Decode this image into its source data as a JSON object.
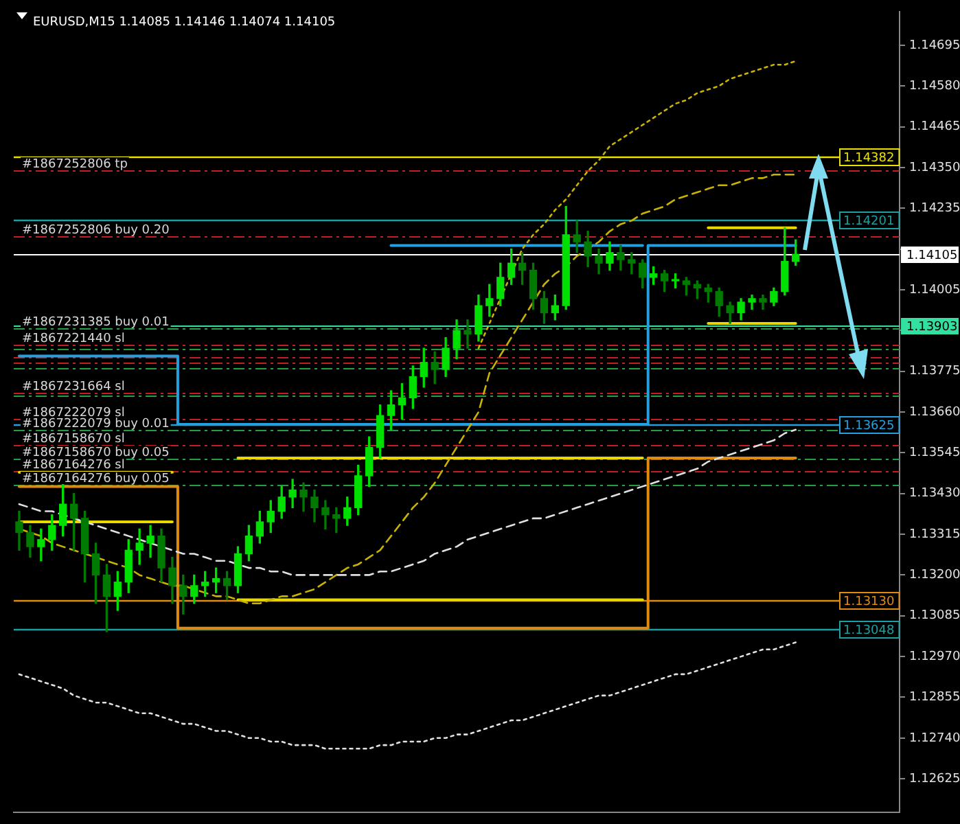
{
  "chart_data": {
    "type": "candlestick",
    "title": "EURUSD,M15 1.14085 1.14146 1.14074 1.14105",
    "colors": [
      "#007a00",
      "#007a00",
      "#00e000",
      "#00e000",
      "#00e000",
      "#007a00",
      "#007a00",
      "#007a00",
      "#007a00",
      "#00e000",
      "#00e000",
      "#00e000",
      "#00e000",
      "#007a00",
      "#007a00",
      "#007a00",
      "#00e000",
      "#00e000",
      "#00e000",
      "#007a00",
      "#00e000",
      "#00e000",
      "#00e000",
      "#00e000",
      "#00e000",
      "#00e000",
      "#007a00",
      "#007a00",
      "#007a00",
      "#007a00",
      "#00e000",
      "#00e000",
      "#00e000",
      "#00e000",
      "#00e000",
      "#00e000",
      "#00e000",
      "#00e000",
      "#007a00",
      "#00e000",
      "#00e000",
      "#007a00",
      "#00e000",
      "#00e000",
      "#00e000",
      "#00e000",
      "#007a00",
      "#007a00",
      "#007a00",
      "#00e000",
      "#00e000",
      "#007a00",
      "#007a00",
      "#007a00",
      "#00e000",
      "#007a00",
      "#007a00",
      "#007a00",
      "#00e000",
      "#007a00",
      "#00e000",
      "#007a00",
      "#007a00",
      "#007a00",
      "#007a00",
      "#007a00",
      "#00e000",
      "#00e000",
      "#007a00",
      "#00e000",
      "#00e000",
      "#00e000",
      null,
      null,
      null,
      null,
      null,
      null,
      null,
      null,
      null
    ],
    "categories": [
      null,
      null,
      null,
      null,
      null,
      null,
      null,
      null,
      null,
      null,
      null,
      null,
      null,
      null,
      null,
      null,
      null,
      null,
      null,
      null,
      null,
      null,
      null,
      null,
      null,
      null,
      null,
      null,
      null,
      null,
      null,
      null,
      null,
      null,
      null,
      null,
      null,
      null,
      null,
      null,
      null,
      null,
      null,
      null,
      null,
      null,
      null,
      null,
      null,
      null,
      null,
      null,
      null,
      null,
      null,
      null,
      null,
      null,
      null,
      null,
      null,
      null,
      null,
      null,
      null,
      null,
      null,
      null,
      null,
      null,
      null,
      null,
      null,
      null,
      null,
      null,
      null,
      null,
      null,
      null,
      null
    ],
    "ohlc": [
      [
        1.1335,
        1.1338,
        1.1327,
        1.1332
      ],
      [
        1.1332,
        1.1334,
        1.1325,
        1.1328
      ],
      [
        1.1328,
        1.1333,
        1.1324,
        1.133
      ],
      [
        1.133,
        1.1337,
        1.1327,
        1.1334
      ],
      [
        1.1334,
        1.1346,
        1.1331,
        1.134
      ],
      [
        1.134,
        1.1343,
        1.1327,
        1.1336
      ],
      [
        1.1336,
        1.1338,
        1.1318,
        1.1326
      ],
      [
        1.1326,
        1.1329,
        1.1312,
        1.132
      ],
      [
        1.132,
        1.1323,
        1.1304,
        1.1314
      ],
      [
        1.1314,
        1.1321,
        1.131,
        1.1318
      ],
      [
        1.1318,
        1.133,
        1.1315,
        1.1327
      ],
      [
        1.1327,
        1.1333,
        1.1323,
        1.1329
      ],
      [
        1.1329,
        1.1334,
        1.1325,
        1.1331
      ],
      [
        1.1331,
        1.1333,
        1.1318,
        1.1322
      ],
      [
        1.1322,
        1.1325,
        1.1312,
        1.1317
      ],
      [
        1.1317,
        1.132,
        1.1309,
        1.1314
      ],
      [
        1.1314,
        1.132,
        1.1312,
        1.1317
      ],
      [
        1.1317,
        1.1321,
        1.1314,
        1.1318
      ],
      [
        1.1318,
        1.1322,
        1.1315,
        1.1319
      ],
      [
        1.1319,
        1.1321,
        1.1313,
        1.1317
      ],
      [
        1.1317,
        1.1328,
        1.1315,
        1.1326
      ],
      [
        1.1326,
        1.1334,
        1.1324,
        1.1331
      ],
      [
        1.1331,
        1.1338,
        1.1329,
        1.1335
      ],
      [
        1.1335,
        1.1341,
        1.1332,
        1.1338
      ],
      [
        1.1338,
        1.1345,
        1.1336,
        1.1342
      ],
      [
        1.1342,
        1.1347,
        1.1339,
        1.1344
      ],
      [
        1.1344,
        1.1346,
        1.1338,
        1.1342
      ],
      [
        1.1342,
        1.1344,
        1.1335,
        1.1339
      ],
      [
        1.1339,
        1.1341,
        1.1333,
        1.1337
      ],
      [
        1.1337,
        1.1339,
        1.1332,
        1.1336
      ],
      [
        1.1336,
        1.1342,
        1.1334,
        1.1339
      ],
      [
        1.1339,
        1.1351,
        1.1337,
        1.1348
      ],
      [
        1.1348,
        1.1359,
        1.1345,
        1.1356
      ],
      [
        1.1356,
        1.1368,
        1.1353,
        1.1365
      ],
      [
        1.1365,
        1.1372,
        1.1361,
        1.1368
      ],
      [
        1.1368,
        1.1374,
        1.1364,
        1.137
      ],
      [
        1.137,
        1.1379,
        1.1367,
        1.1376
      ],
      [
        1.1376,
        1.1384,
        1.1373,
        1.138
      ],
      [
        1.138,
        1.1383,
        1.1374,
        1.1378
      ],
      [
        1.1378,
        1.1387,
        1.1376,
        1.1384
      ],
      [
        1.1384,
        1.1392,
        1.1381,
        1.1389
      ],
      [
        1.1389,
        1.1392,
        1.1384,
        1.1388
      ],
      [
        1.1388,
        1.1399,
        1.1386,
        1.1396
      ],
      [
        1.1396,
        1.1402,
        1.1393,
        1.1398
      ],
      [
        1.1398,
        1.1408,
        1.1396,
        1.1404
      ],
      [
        1.1404,
        1.1412,
        1.1402,
        1.1408
      ],
      [
        1.1408,
        1.1411,
        1.1402,
        1.1406
      ],
      [
        1.1406,
        1.1408,
        1.1395,
        1.1398
      ],
      [
        1.1398,
        1.14,
        1.1391,
        1.1394
      ],
      [
        1.1394,
        1.1399,
        1.1392,
        1.1396
      ],
      [
        1.1396,
        1.1424,
        1.1395,
        1.1416
      ],
      [
        1.1416,
        1.142,
        1.1411,
        1.1414
      ],
      [
        1.1414,
        1.1417,
        1.1407,
        1.141
      ],
      [
        1.141,
        1.1412,
        1.1405,
        1.1408
      ],
      [
        1.1408,
        1.1414,
        1.1406,
        1.1411
      ],
      [
        1.1411,
        1.1413,
        1.1406,
        1.1409
      ],
      [
        1.1409,
        1.1411,
        1.1405,
        1.1408
      ],
      [
        1.1408,
        1.1409,
        1.1401,
        1.1404
      ],
      [
        1.1404,
        1.1407,
        1.1402,
        1.1405
      ],
      [
        1.1405,
        1.1406,
        1.14,
        1.1403
      ],
      [
        1.1403,
        1.1405,
        1.1401,
        1.1403
      ],
      [
        1.1403,
        1.1404,
        1.1399,
        1.1402
      ],
      [
        1.1402,
        1.1403,
        1.1398,
        1.1401
      ],
      [
        1.1401,
        1.1402,
        1.1397,
        1.14
      ],
      [
        1.14,
        1.1401,
        1.1393,
        1.1396
      ],
      [
        1.1396,
        1.1397,
        1.1391,
        1.1394
      ],
      [
        1.1394,
        1.1398,
        1.1392,
        1.1397
      ],
      [
        1.1397,
        1.1399,
        1.1395,
        1.1398
      ],
      [
        1.1398,
        1.1399,
        1.1395,
        1.1397
      ],
      [
        1.1397,
        1.1401,
        1.1396,
        1.14
      ],
      [
        1.14,
        1.1418,
        1.1399,
        1.14085
      ],
      [
        1.14085,
        1.14146,
        1.14074,
        1.14105
      ],
      null,
      null,
      null,
      null,
      null,
      null,
      null,
      null,
      null
    ],
    "series": [
      {
        "type": "line",
        "color": "#e0e0e0",
        "line_style": "dashed",
        "values": [
          1.134,
          1.1339,
          1.1338,
          1.1338,
          1.1337,
          1.1336,
          1.1335,
          1.1334,
          1.1333,
          1.1332,
          1.1331,
          1.133,
          1.1329,
          1.1328,
          1.1327,
          1.1326,
          1.1326,
          1.1325,
          1.1324,
          1.1324,
          1.1323,
          1.1322,
          1.1322,
          1.1321,
          1.1321,
          1.132,
          1.132,
          1.132,
          1.132,
          1.132,
          1.132,
          1.132,
          1.132,
          1.1321,
          1.1321,
          1.1322,
          1.1323,
          1.1324,
          1.1326,
          1.1327,
          1.1328,
          1.133,
          1.1331,
          1.1332,
          1.1333,
          1.1334,
          1.1335,
          1.1336,
          1.1336,
          1.1337,
          1.1338,
          1.1339,
          1.134,
          1.1341,
          1.1342,
          1.1343,
          1.1344,
          1.1345,
          1.1346,
          1.1347,
          1.1348,
          1.1349,
          1.135,
          1.1352,
          1.1353,
          1.1354,
          1.1355,
          1.1356,
          1.1357,
          1.1358,
          1.136,
          1.1361,
          null,
          null,
          null,
          null,
          null,
          null,
          null,
          null,
          null
        ]
      },
      {
        "type": "line",
        "color": "#c8b400",
        "line_style": "dashed",
        "values": [
          1.1333,
          1.1332,
          1.1331,
          1.1329,
          1.1328,
          1.1327,
          1.1326,
          1.1325,
          1.1324,
          1.1323,
          1.1322,
          1.132,
          1.1319,
          1.1318,
          1.1317,
          1.1317,
          1.1316,
          1.1315,
          1.1314,
          1.1314,
          1.1313,
          1.1312,
          1.1312,
          1.1313,
          1.1314,
          1.1314,
          1.1315,
          1.1316,
          1.1318,
          1.132,
          1.1322,
          1.1323,
          1.1325,
          1.1327,
          1.1331,
          1.1335,
          1.1339,
          1.1342,
          1.1346,
          1.1351,
          1.1356,
          1.1361,
          1.1366,
          1.1377,
          1.1382,
          1.1387,
          1.1392,
          1.1397,
          1.1402,
          1.1405,
          1.1407,
          1.141,
          1.1412,
          1.1414,
          1.1417,
          1.1419,
          1.142,
          1.1422,
          1.1423,
          1.1424,
          1.1426,
          1.1427,
          1.1428,
          1.1429,
          1.143,
          1.143,
          1.1431,
          1.1432,
          1.1432,
          1.1433,
          1.1433,
          1.1433,
          null,
          null,
          null,
          null,
          null,
          null,
          null,
          null,
          null
        ]
      },
      {
        "type": "line",
        "color": "#e0e0e0",
        "line_style": "dotted",
        "values": [
          1.1292,
          1.1291,
          1.129,
          1.1289,
          1.1288,
          1.1286,
          1.1285,
          1.1284,
          1.1284,
          1.1283,
          1.1282,
          1.1281,
          1.1281,
          1.128,
          1.1279,
          1.1278,
          1.1278,
          1.1277,
          1.1276,
          1.1276,
          1.1275,
          1.1274,
          1.1274,
          1.1273,
          1.1273,
          1.1272,
          1.1272,
          1.1272,
          1.1271,
          1.1271,
          1.1271,
          1.1271,
          1.1271,
          1.1272,
          1.1272,
          1.1273,
          1.1273,
          1.1273,
          1.1274,
          1.1274,
          1.1275,
          1.1275,
          1.1276,
          1.1277,
          1.1278,
          1.1279,
          1.1279,
          1.128,
          1.1281,
          1.1282,
          1.1283,
          1.1284,
          1.1285,
          1.1286,
          1.1286,
          1.1287,
          1.1288,
          1.1289,
          1.129,
          1.1291,
          1.1292,
          1.1292,
          1.1293,
          1.1294,
          1.1295,
          1.1296,
          1.1297,
          1.1298,
          1.1299,
          1.1299,
          1.13,
          1.1301,
          null,
          null,
          null,
          null,
          null,
          null,
          null,
          null,
          null
        ]
      },
      {
        "type": "line",
        "color": "#c8b400",
        "line_style": "dotted",
        "values": [
          null,
          null,
          null,
          null,
          null,
          null,
          null,
          null,
          null,
          null,
          null,
          null,
          null,
          null,
          null,
          null,
          null,
          null,
          null,
          null,
          null,
          null,
          null,
          null,
          null,
          null,
          null,
          null,
          null,
          null,
          null,
          null,
          null,
          null,
          null,
          null,
          null,
          null,
          null,
          null,
          null,
          null,
          1.1384,
          1.1391,
          1.1398,
          1.1405,
          1.1412,
          1.1416,
          1.1419,
          1.1423,
          1.1426,
          1.143,
          1.1434,
          1.1437,
          1.1441,
          1.1443,
          1.1445,
          1.1447,
          1.1449,
          1.1451,
          1.1453,
          1.1454,
          1.1456,
          1.1457,
          1.1458,
          1.146,
          1.1461,
          1.1462,
          1.1463,
          1.1464,
          1.1464,
          1.1465,
          null,
          null,
          null,
          null,
          null,
          null,
          null,
          null,
          null
        ]
      },
      {
        "type": "step",
        "color": "#22a0e0",
        "line_style": "solid",
        "values": [
          1.13818,
          1.13818,
          1.13818,
          1.13818,
          1.13818,
          1.13818,
          1.13818,
          1.13818,
          1.13818,
          1.13818,
          1.13818,
          1.13818,
          1.13818,
          1.13818,
          1.13818,
          1.13625,
          1.13625,
          1.13625,
          1.13625,
          1.13625,
          1.13625,
          1.13625,
          1.13625,
          1.13625,
          1.13625,
          1.13625,
          1.13625,
          1.13625,
          1.13625,
          1.13625,
          1.13625,
          1.13625,
          1.13625,
          1.13625,
          1.13625,
          1.13625,
          1.13625,
          1.13625,
          1.13625,
          1.13625,
          1.13625,
          1.13625,
          1.13625,
          1.13625,
          1.13625,
          1.13625,
          1.13625,
          1.13625,
          1.13625,
          1.13625,
          1.13625,
          1.13625,
          1.13625,
          1.13625,
          1.13625,
          1.13625,
          1.13625,
          1.13625,
          1.1413,
          1.1413,
          1.1413,
          1.1413,
          1.1413,
          1.1413,
          1.1413,
          1.1413,
          1.1413,
          1.1413,
          1.1413,
          1.1413,
          1.1413,
          1.1413,
          null,
          null,
          null,
          null,
          null,
          null,
          null,
          null,
          null
        ]
      },
      {
        "type": "step",
        "color": "#22a0e0",
        "line_style": "solid",
        "values": [
          null,
          null,
          null,
          null,
          null,
          null,
          null,
          null,
          null,
          null,
          null,
          null,
          null,
          null,
          null,
          null,
          null,
          null,
          null,
          null,
          null,
          null,
          null,
          null,
          null,
          null,
          null,
          null,
          null,
          null,
          null,
          null,
          null,
          null,
          1.1413,
          1.1413,
          1.1413,
          1.1413,
          1.1413,
          1.1413,
          1.1413,
          1.1413,
          1.1413,
          1.1413,
          1.1413,
          1.1413,
          1.1413,
          1.1413,
          1.1413,
          1.1413,
          1.1413,
          1.1413,
          1.1413,
          1.1413,
          1.1413,
          1.1413,
          1.1413,
          1.1413,
          null,
          null,
          null,
          null,
          null,
          null,
          null,
          null,
          null,
          null,
          null,
          null,
          null,
          null,
          null,
          null,
          null,
          null,
          null,
          null,
          null,
          null,
          null
        ]
      },
      {
        "type": "step",
        "color": "#e08a10",
        "line_style": "solid",
        "values": [
          1.1345,
          1.1345,
          1.1345,
          1.1345,
          1.1345,
          1.1345,
          1.1345,
          1.1345,
          1.1345,
          1.1345,
          1.1345,
          1.1345,
          1.1345,
          1.1345,
          1.1345,
          1.1305,
          1.1305,
          1.1305,
          1.1305,
          1.1305,
          1.1305,
          1.1305,
          1.1305,
          1.1305,
          1.1305,
          1.1305,
          1.1305,
          1.1305,
          1.1305,
          1.1305,
          1.1305,
          1.1305,
          1.1305,
          1.1305,
          1.1305,
          1.1305,
          1.1305,
          1.1305,
          1.1305,
          1.1305,
          1.1305,
          1.1305,
          1.1305,
          1.1305,
          1.1305,
          1.1305,
          1.1305,
          1.1305,
          1.1305,
          1.1305,
          1.1305,
          1.1305,
          1.1305,
          1.1305,
          1.1305,
          1.1305,
          1.1305,
          1.1305,
          1.1353,
          1.1353,
          1.1353,
          1.1353,
          1.1353,
          1.1353,
          1.1353,
          1.1353,
          1.1353,
          1.1353,
          1.1353,
          1.1353,
          1.1353,
          1.1353,
          null,
          null,
          null,
          null,
          null,
          null,
          null,
          null,
          null
        ]
      },
      {
        "type": "step",
        "color": "#e8d800",
        "line_style": "solid",
        "values": [
          1.1349,
          1.1349,
          1.1349,
          1.1349,
          1.1349,
          1.1349,
          1.1349,
          1.1349,
          1.1349,
          1.1349,
          1.1349,
          1.1349,
          1.1349,
          1.1349,
          1.1349,
          null,
          null,
          null,
          null,
          null,
          1.1353,
          1.1353,
          1.1353,
          1.1353,
          1.1353,
          1.1353,
          1.1353,
          1.1353,
          1.1353,
          1.1353,
          1.1353,
          1.1353,
          1.1353,
          1.1353,
          1.1353,
          1.1353,
          1.1353,
          1.1353,
          1.1353,
          1.1353,
          1.1353,
          1.1353,
          1.1353,
          1.1353,
          1.1353,
          1.1353,
          1.1353,
          1.1353,
          1.1353,
          1.1353,
          1.1353,
          1.1353,
          1.1353,
          1.1353,
          1.1353,
          1.1353,
          1.1353,
          1.1353,
          null,
          null,
          null,
          null,
          null,
          1.1418,
          1.1418,
          1.1418,
          1.1418,
          1.1418,
          1.1418,
          1.1418,
          1.1418,
          1.1418,
          null,
          null,
          null,
          null,
          null,
          null,
          null,
          null,
          null
        ]
      },
      {
        "type": "step",
        "color": "#e8d800",
        "line_style": "solid",
        "values": [
          1.1335,
          1.1335,
          1.1335,
          1.1335,
          1.1335,
          1.1335,
          1.1335,
          1.1335,
          1.1335,
          1.1335,
          1.1335,
          1.1335,
          1.1335,
          1.1335,
          1.1335,
          null,
          null,
          null,
          null,
          null,
          1.1313,
          1.1313,
          1.1313,
          1.1313,
          1.1313,
          1.1313,
          1.1313,
          1.1313,
          1.1313,
          1.1313,
          1.1313,
          1.1313,
          1.1313,
          1.1313,
          1.1313,
          1.1313,
          1.1313,
          1.1313,
          1.1313,
          1.1313,
          1.1313,
          1.1313,
          1.1313,
          1.1313,
          1.1313,
          1.1313,
          1.1313,
          1.1313,
          1.1313,
          1.1313,
          1.1313,
          1.1313,
          1.1313,
          1.1313,
          1.1313,
          1.1313,
          1.1313,
          1.1313,
          null,
          null,
          null,
          null,
          null,
          1.1391,
          1.1391,
          1.1391,
          1.1391,
          1.1391,
          1.1391,
          1.1391,
          1.1391,
          1.1391,
          null,
          null,
          null,
          null,
          null,
          null,
          null,
          null,
          null
        ]
      }
    ],
    "ylim": [
      1.1253,
      1.1479
    ],
    "yticks": [
      {
        "value": 1.12625,
        "label": "1.12625"
      },
      {
        "value": 1.1274,
        "label": "1.12740"
      },
      {
        "value": 1.12855,
        "label": "1.12855"
      },
      {
        "value": 1.1297,
        "label": "1.12970"
      },
      {
        "value": 1.13085,
        "label": "1.13085"
      },
      {
        "value": 1.132,
        "label": "1.13200"
      },
      {
        "value": 1.13315,
        "label": "1.13315"
      },
      {
        "value": 1.1343,
        "label": "1.13430"
      },
      {
        "value": 1.13545,
        "label": "1.13545"
      },
      {
        "value": 1.1366,
        "label": "1.13660"
      },
      {
        "value": 1.13775,
        "label": "1.13775"
      },
      {
        "value": 1.1389,
        "label": null
      },
      {
        "value": 1.14005,
        "label": "1.14005"
      },
      {
        "value": 1.1412,
        "label": null
      },
      {
        "value": 1.14235,
        "label": "1.14235"
      },
      {
        "value": 1.1435,
        "label": "1.14350"
      },
      {
        "value": 1.14465,
        "label": "1.14465"
      },
      {
        "value": 1.1458,
        "label": "1.14580"
      },
      {
        "value": 1.14695,
        "label": "1.14695"
      }
    ],
    "ref_lines": [
      {
        "axis": "y",
        "value": 1.14382,
        "label": "1.14382",
        "color": "#e8e000",
        "line_style": "solid"
      },
      {
        "axis": "y",
        "value": 1.14341,
        "label": "#1867252806 tp",
        "color": "#c02020",
        "line_style": "dashed"
      },
      {
        "axis": "y",
        "value": 1.14201,
        "label": "1.14201",
        "color": "#1aa0a0",
        "line_style": "solid"
      },
      {
        "axis": "y",
        "value": 1.14156,
        "label": "#1867252806 buy 0.20",
        "color": "#c02020",
        "line_style": "dashed"
      },
      {
        "axis": "y",
        "value": 1.14105,
        "label": "1.14105",
        "color": "#ffffff"
      },
      {
        "axis": "y",
        "value": 1.13903,
        "label": "1.13903",
        "color": "#33e0a0"
      },
      {
        "axis": "y",
        "value": 1.13895,
        "label": "#1867231385 buy 0.01",
        "color": "#20a040",
        "line_style": "dashed"
      },
      {
        "axis": "y",
        "value": 1.13849,
        "label": "#1867221440 sl",
        "color": "#c02020",
        "line_style": "dashed"
      },
      {
        "axis": "y",
        "value": 1.13837,
        "label": null,
        "color": "#20a040",
        "line_style": "dashed"
      },
      {
        "axis": "y",
        "value": 1.13814,
        "label": null,
        "color": "#c02020",
        "line_style": "dashed"
      },
      {
        "axis": "y",
        "value": 1.13799,
        "label": null,
        "color": "#c02020",
        "line_style": "dashed"
      },
      {
        "axis": "y",
        "value": 1.13784,
        "label": null,
        "color": "#20a040",
        "line_style": "dashed"
      },
      {
        "axis": "y",
        "value": 1.13714,
        "label": "#1867231664 sl",
        "color": "#c02020",
        "line_style": "dashed"
      },
      {
        "axis": "y",
        "value": 1.13707,
        "label": null,
        "color": "#20a040",
        "line_style": "dashed"
      },
      {
        "axis": "y",
        "value": 1.13625,
        "label": "1.13625",
        "color": "#22a0e0",
        "line_style": "solid"
      },
      {
        "axis": "y",
        "value": 1.1364,
        "label": "#1867222079 sl",
        "color": "#c02020",
        "line_style": "dashed"
      },
      {
        "axis": "y",
        "value": 1.1361,
        "label": "#1867222079 buy 0.01",
        "color": "#20a040",
        "line_style": "dashed"
      },
      {
        "axis": "y",
        "value": 1.13568,
        "label": "#1867158670 sl",
        "color": "#c02020",
        "line_style": "dashed"
      },
      {
        "axis": "y",
        "value": 1.1353,
        "label": "#1867158670 buy 0.05",
        "color": "#20a040",
        "line_style": "dashed"
      },
      {
        "axis": "y",
        "value": 1.13495,
        "label": "#1867164276 sl",
        "color": "#c02020",
        "line_style": "dashed"
      },
      {
        "axis": "y",
        "value": 1.13453,
        "label": "#1867164276 buy 0.05",
        "color": "#20a040",
        "line_style": "dashed"
      },
      {
        "axis": "y",
        "value": 1.1313,
        "label": "1.13130",
        "color": "#e08a10",
        "line_style": "solid"
      },
      {
        "axis": "y",
        "value": 1.13048,
        "label": "1.13048",
        "color": "#1aa0a0",
        "line_style": "solid"
      }
    ],
    "tick_labels": "y"
  }
}
